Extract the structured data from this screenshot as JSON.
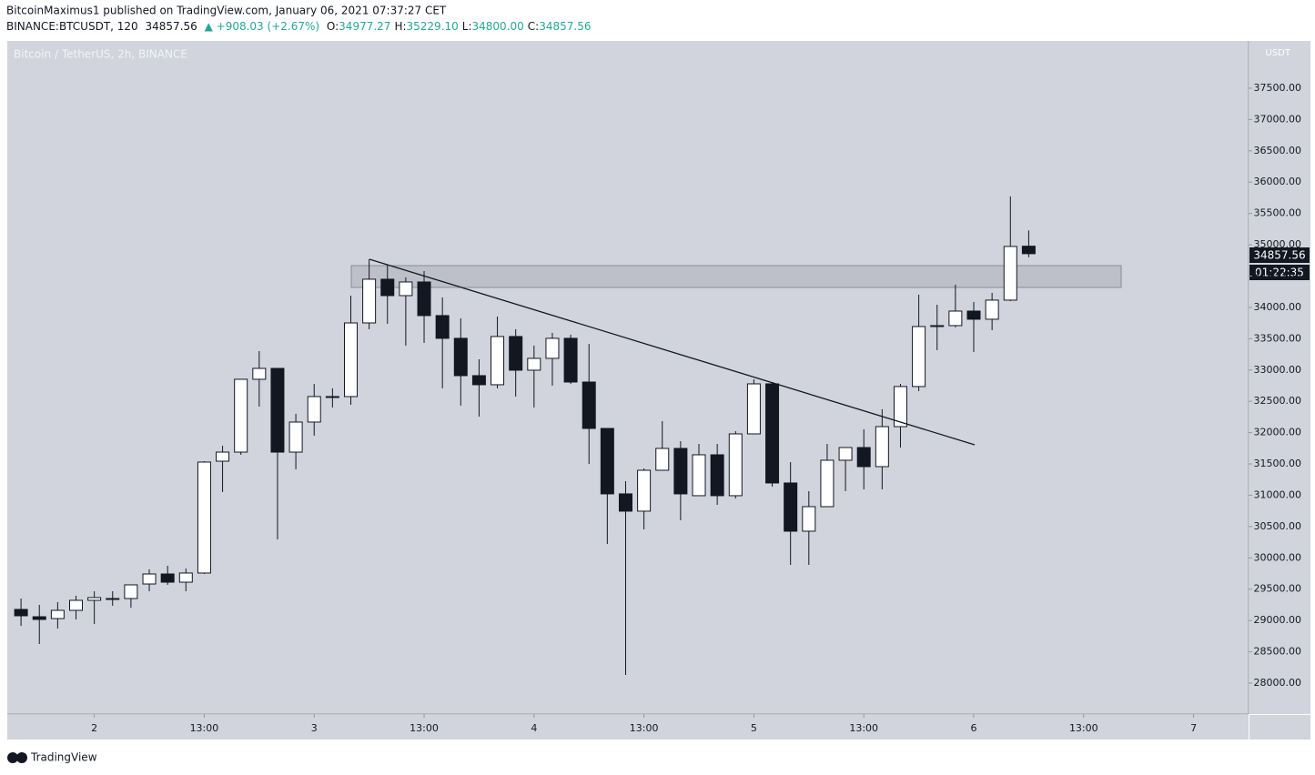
{
  "header": {
    "author_line": "BitcoinMaximus1 published on TradingView.com, January 06, 2021 07:37:27 CET",
    "symbol": "BINANCE:BTCUSDT, 120",
    "last": "34857.56",
    "change": "▲ +908.03 (+2.67%)",
    "quote": [
      {
        "label": "O:",
        "value": "34977.27"
      },
      {
        "label": "H:",
        "value": "35229.10"
      },
      {
        "label": "L:",
        "value": "34800.00"
      },
      {
        "label": "C:",
        "value": "34857.56"
      }
    ]
  },
  "chart_data": {
    "type": "candlestick",
    "title": "Bitcoin / TetherUS, 2h, BINANCE",
    "currency": "USDT",
    "price_tag": "34857.56",
    "countdown": "01:22:35",
    "up_color": "#ffffff",
    "down_color": "#131722",
    "x": [
      -7,
      -5,
      -3,
      -1,
      1,
      3,
      5,
      7,
      9,
      11,
      13,
      15,
      17,
      19,
      21,
      23,
      25,
      27,
      29,
      31,
      33,
      35,
      37,
      39,
      41,
      43,
      45,
      47,
      49,
      51,
      53,
      55,
      57,
      59,
      61,
      63,
      65,
      67,
      69,
      71,
      73,
      75,
      77,
      79,
      81,
      83,
      85,
      87,
      89,
      91,
      93,
      95,
      97,
      99,
      101,
      103
    ],
    "open": [
      29177,
      29060,
      29031,
      29162,
      29322,
      29336,
      29351,
      29583,
      29743,
      29612,
      29758,
      31544,
      31689,
      32852,
      33026,
      31689,
      32169,
      32576,
      32576,
      33752,
      34450,
      34188,
      34406,
      33869,
      33506,
      32910,
      32765,
      33535,
      32997,
      33186,
      33506,
      32808,
      32067,
      31022,
      30746,
      31399,
      31748,
      30993,
      31646,
      30993,
      31980,
      32779,
      31196,
      30426,
      30818,
      31559,
      31762,
      31457,
      32096,
      32736,
      33694,
      33709,
      33941,
      33811,
      34116,
      34977.27
    ],
    "high": [
      29351,
      29250,
      29293,
      29395,
      29467,
      29467,
      29569,
      29816,
      29874,
      29830,
      31544,
      31791,
      32852,
      33302,
      33026,
      32300,
      32779,
      32707,
      34188,
      34769,
      34668,
      34479,
      34580,
      34159,
      33825,
      33171,
      33854,
      33651,
      33389,
      33593,
      33564,
      33418,
      32067,
      31225,
      31428,
      32184,
      31864,
      31820,
      31820,
      32024,
      32852,
      32808,
      31530,
      31065,
      31820,
      31762,
      32053,
      32373,
      32779,
      34203,
      34043,
      34363,
      34087,
      34232,
      35772,
      35229.1
    ],
    "low": [
      28915,
      28625,
      28872,
      29017,
      28944,
      29235,
      29206,
      29467,
      29569,
      29467,
      29743,
      31051,
      31646,
      32416,
      30295,
      31414,
      31951,
      32402,
      32445,
      33651,
      33738,
      33389,
      33433,
      32707,
      32431,
      32256,
      32707,
      32576,
      32402,
      32750,
      32779,
      31501,
      30223,
      28131,
      30455,
      31399,
      30600,
      30993,
      30847,
      30949,
      31980,
      31138,
      29888,
      29888,
      30818,
      31065,
      31094,
      31094,
      31762,
      32663,
      33317,
      33680,
      33288,
      33636,
      34101,
      34800
    ],
    "close": [
      29075,
      29017,
      29162,
      29322,
      29366,
      29351,
      29569,
      29743,
      29612,
      29758,
      31530,
      31689,
      32852,
      33026,
      31689,
      32169,
      32576,
      32576,
      33752,
      34450,
      34188,
      34406,
      33869,
      33506,
      32910,
      32765,
      33535,
      32997,
      33186,
      33506,
      32808,
      32067,
      31022,
      30746,
      31399,
      31748,
      31022,
      31646,
      30993,
      31980,
      32779,
      31196,
      30426,
      30818,
      31559,
      31762,
      31457,
      32096,
      32736,
      33694,
      33709,
      33941,
      33811,
      34116,
      34973,
      34857.56
    ],
    "xlim": [
      -8.5,
      127
    ],
    "xticks": [
      {
        "value": 1,
        "label": "2"
      },
      {
        "value": 13,
        "label": "13:00"
      },
      {
        "value": 25,
        "label": "3"
      },
      {
        "value": 37,
        "label": "13:00"
      },
      {
        "value": 49,
        "label": "4"
      },
      {
        "value": 61,
        "label": "13:00"
      },
      {
        "value": 73,
        "label": "5"
      },
      {
        "value": 85,
        "label": "13:00"
      },
      {
        "value": 97,
        "label": "6"
      },
      {
        "value": 109,
        "label": "13:00"
      },
      {
        "value": 121,
        "label": "7"
      }
    ],
    "ylim": [
      27506,
      38255
    ],
    "yticks": [
      {
        "value": 28000,
        "label": "28000.00"
      },
      {
        "value": 28500,
        "label": "28500.00"
      },
      {
        "value": 29000,
        "label": "29000.00"
      },
      {
        "value": 29500,
        "label": "29500.00"
      },
      {
        "value": 30000,
        "label": "30000.00"
      },
      {
        "value": 30500,
        "label": "30500.00"
      },
      {
        "value": 31000,
        "label": "31000.00"
      },
      {
        "value": 31500,
        "label": "31500.00"
      },
      {
        "value": 32000,
        "label": "32000.00"
      },
      {
        "value": 32500,
        "label": "32500.00"
      },
      {
        "value": 33000,
        "label": "33000.00"
      },
      {
        "value": 33500,
        "label": "33500.00"
      },
      {
        "value": 34000,
        "label": "34000.00"
      },
      {
        "value": 34500,
        "label": "34500.00"
      },
      {
        "value": 35000,
        "label": "35000.00"
      },
      {
        "value": 35500,
        "label": "35500.00"
      },
      {
        "value": 36000,
        "label": "36000.00"
      },
      {
        "value": 36500,
        "label": "36500.00"
      },
      {
        "value": 37000,
        "label": "37000.00"
      },
      {
        "value": 37500,
        "label": "37500.00"
      }
    ]
  },
  "footer": {
    "brand": "TradingView"
  }
}
